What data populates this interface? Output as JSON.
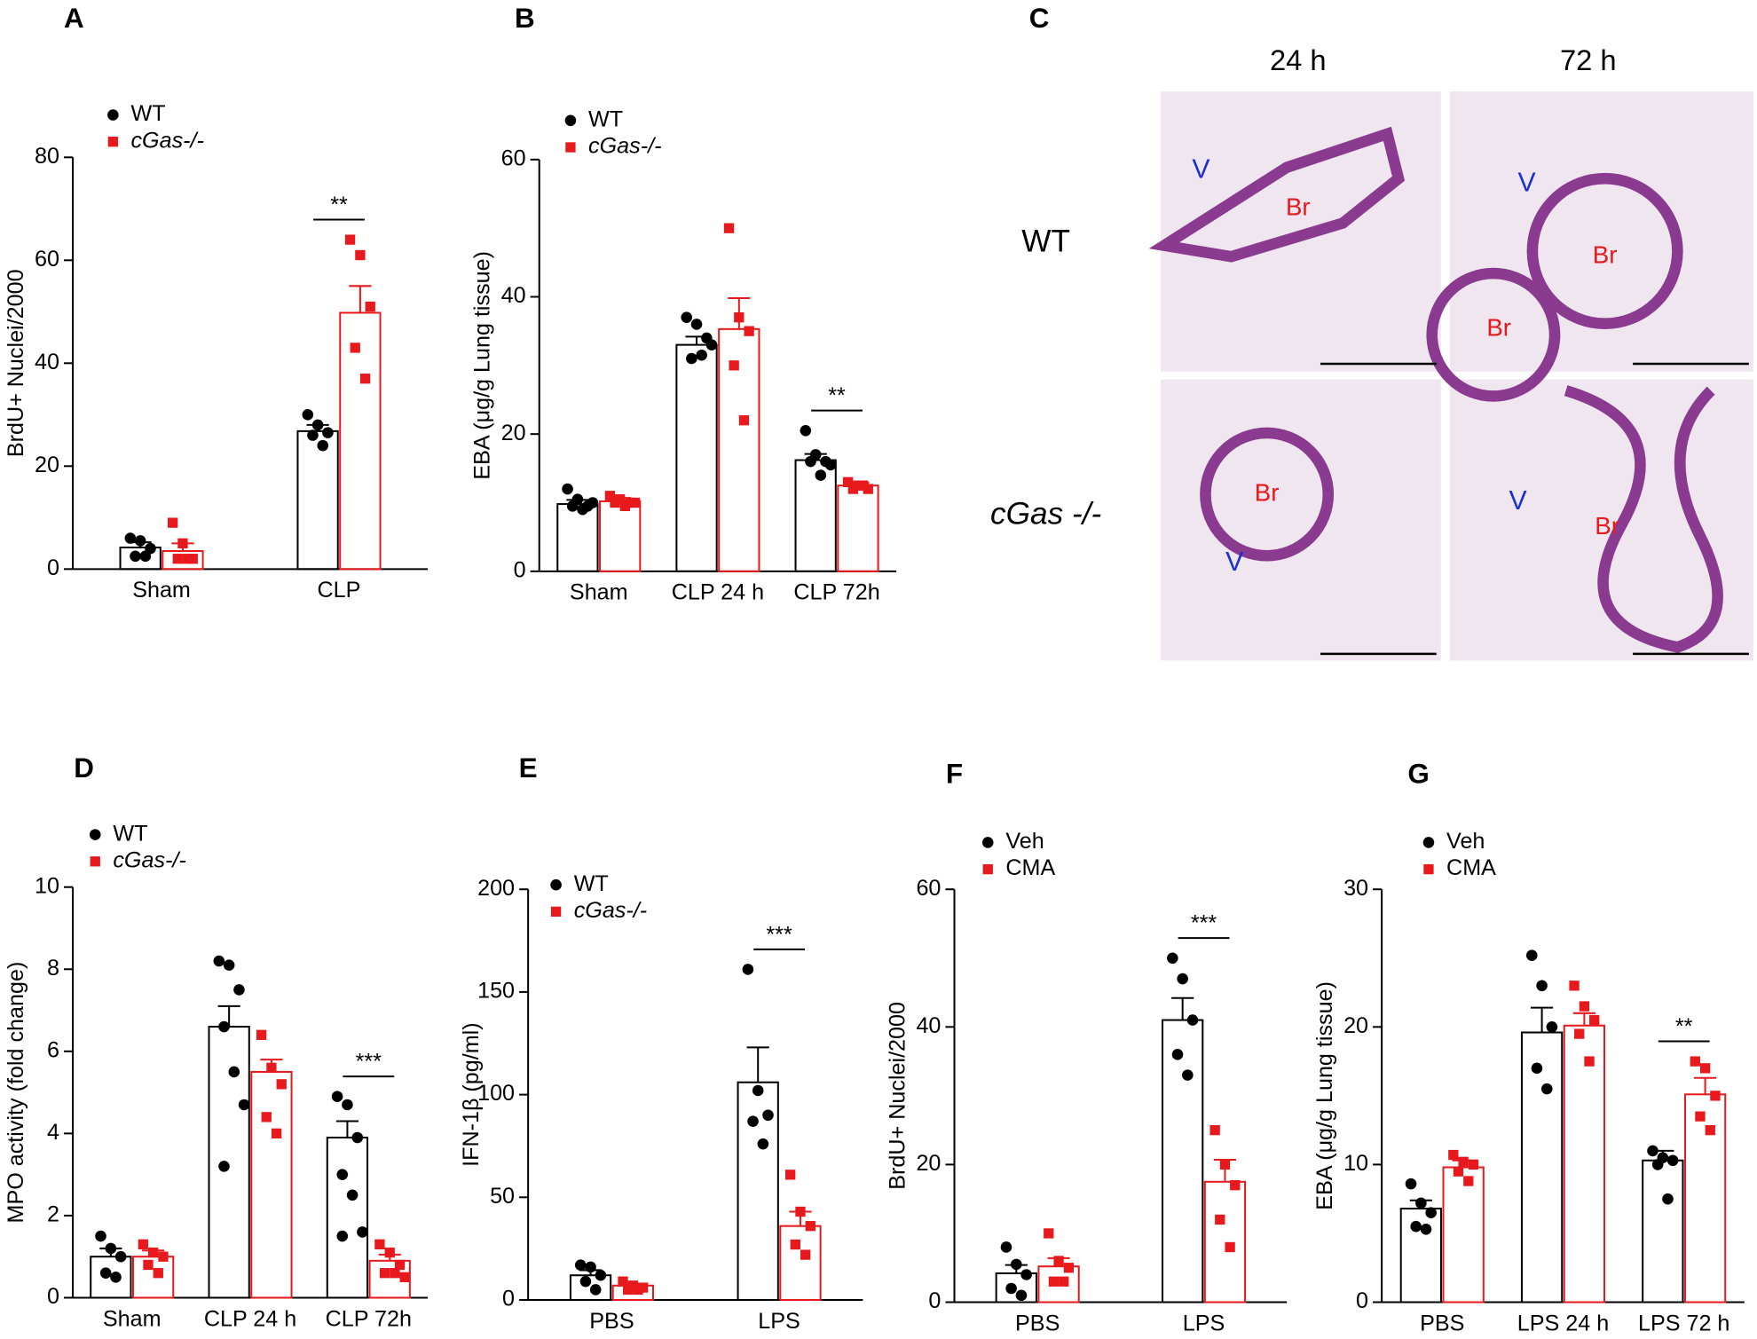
{
  "chart_data": [
    {
      "type": "bar",
      "label": "A",
      "ylabel": "BrdU+ Nuclei/2000",
      "categories": [
        "Sham",
        "CLP"
      ],
      "ylim": [
        0,
        80
      ],
      "yticks": [
        0,
        20,
        40,
        60,
        80
      ],
      "significance": [
        null,
        "**"
      ],
      "series": [
        {
          "name": "WT",
          "color": "#000000",
          "marker": "circle",
          "values": [
            4.2,
            26.8
          ],
          "errors": [
            1.0,
            1.2
          ],
          "points": [
            [
              6,
              5.5,
              4,
              2.5,
              2.5
            ],
            [
              30,
              28,
              26.5,
              26,
              24
            ]
          ]
        },
        {
          "name": "cGas-/-",
          "color": "#e8191c",
          "marker": "square",
          "values": [
            3.5,
            49.8
          ],
          "errors": [
            1.5,
            5.2
          ],
          "points": [
            [
              9,
              5,
              2,
              2,
              2
            ],
            [
              64,
              61,
              51,
              43,
              37
            ]
          ]
        }
      ]
    },
    {
      "type": "bar",
      "label": "B",
      "ylabel": "EBA (μg/g Lung tissue)",
      "categories": [
        "Sham",
        "CLP 24 h",
        "CLP 72h"
      ],
      "ylim": [
        0,
        60
      ],
      "yticks": [
        0,
        20,
        40,
        60
      ],
      "significance": [
        null,
        null,
        "**"
      ],
      "series": [
        {
          "name": "WT",
          "color": "#000000",
          "marker": "circle",
          "values": [
            9.8,
            33,
            16.2
          ],
          "errors": [
            0.6,
            1.2,
            0.9
          ],
          "points": [
            [
              12,
              10.5,
              9.5,
              9.5,
              9,
              10
            ],
            [
              37,
              36,
              34,
              31,
              31.5,
              33
            ],
            [
              20.5,
              17,
              16,
              16,
              14,
              15.5
            ]
          ]
        },
        {
          "name": "cGas-/-",
          "color": "#e8191c",
          "marker": "square",
          "values": [
            10.2,
            35.3,
            12.5
          ],
          "errors": [
            0.5,
            4.5,
            0.4
          ],
          "points": [
            [
              11,
              10.5,
              10,
              10,
              9.5,
              10
            ],
            [
              50,
              37,
              35,
              30,
              22
            ],
            [
              13,
              12.5,
              12,
              12,
              12.5
            ]
          ]
        }
      ]
    },
    {
      "type": "bar",
      "label": "D",
      "ylabel": "MPO activity (fold change)",
      "categories": [
        "Sham",
        "CLP 24 h",
        "CLP 72h"
      ],
      "ylim": [
        0,
        10
      ],
      "yticks": [
        0,
        2,
        4,
        6,
        8,
        10
      ],
      "significance": [
        null,
        null,
        "***"
      ],
      "series": [
        {
          "name": "WT",
          "color": "#000000",
          "marker": "circle",
          "values": [
            1.0,
            6.6,
            3.9
          ],
          "errors": [
            0.2,
            0.5,
            0.4
          ],
          "points": [
            [
              1.5,
              1.2,
              1.0,
              0.6,
              0.5
            ],
            [
              8.2,
              8.1,
              7.5,
              6.6,
              5.5,
              4.7,
              3.2
            ],
            [
              4.9,
              4.7,
              3.9,
              3.0,
              2.5,
              1.6,
              1.5
            ]
          ]
        },
        {
          "name": "cGas-/-",
          "color": "#e8191c",
          "marker": "square",
          "values": [
            1.0,
            5.5,
            0.9
          ],
          "errors": [
            0.15,
            0.3,
            0.15
          ],
          "points": [
            [
              1.3,
              1.1,
              1.0,
              0.8,
              0.6
            ],
            [
              6.4,
              5.6,
              5.2,
              4.4,
              4.0
            ],
            [
              1.3,
              1.1,
              0.8,
              0.6,
              0.6,
              0.5
            ]
          ]
        }
      ]
    },
    {
      "type": "bar",
      "label": "E",
      "ylabel": "IFN-1β (pg/ml)",
      "categories": [
        "PBS",
        "LPS"
      ],
      "ylim": [
        0,
        200
      ],
      "yticks": [
        0,
        50,
        100,
        150,
        200
      ],
      "significance": [
        null,
        "***"
      ],
      "series": [
        {
          "name": "WT",
          "color": "#000000",
          "marker": "circle",
          "values": [
            12,
            106
          ],
          "errors": [
            2.5,
            17
          ],
          "points": [
            [
              17,
              16,
              12,
              9,
              5
            ],
            [
              161,
              102,
              90,
              87,
              76
            ]
          ]
        },
        {
          "name": "cGas-/-",
          "color": "#e8191c",
          "marker": "square",
          "values": [
            7,
            36
          ],
          "errors": [
            1,
            7
          ],
          "points": [
            [
              9,
              7,
              6,
              5,
              5
            ],
            [
              61,
              43,
              36,
              27,
              22
            ]
          ]
        }
      ]
    },
    {
      "type": "bar",
      "label": "F",
      "ylabel": "BrdU+ Nuclei/2000",
      "categories": [
        "PBS",
        "LPS"
      ],
      "ylim": [
        0,
        60
      ],
      "yticks": [
        0,
        20,
        40,
        60
      ],
      "significance": [
        null,
        "***"
      ],
      "series": [
        {
          "name": "Veh",
          "color": "#000000",
          "marker": "circle",
          "values": [
            4.2,
            41
          ],
          "errors": [
            1.2,
            3.2
          ],
          "points": [
            [
              8,
              5.5,
              4,
              2,
              1
            ],
            [
              50,
              47,
              41,
              36,
              33
            ]
          ]
        },
        {
          "name": "CMA",
          "color": "#e8191c",
          "marker": "square",
          "values": [
            5.2,
            17.5
          ],
          "errors": [
            1.2,
            3.2
          ],
          "points": [
            [
              10,
              6,
              5,
              3,
              3
            ],
            [
              25,
              20,
              17,
              12,
              8
            ]
          ]
        }
      ]
    },
    {
      "type": "bar",
      "label": "G",
      "ylabel": "EBA (μg/g Lung tissue)",
      "categories": [
        "PBS",
        "LPS 24 h",
        "LPS 72 h"
      ],
      "ylim": [
        0,
        30
      ],
      "yticks": [
        0,
        10,
        20,
        30
      ],
      "significance": [
        null,
        null,
        "**"
      ],
      "series": [
        {
          "name": "Veh",
          "color": "#000000",
          "marker": "circle",
          "values": [
            6.8,
            19.6,
            10.3
          ],
          "errors": [
            0.6,
            1.8,
            0.7
          ],
          "points": [
            [
              8.6,
              7.2,
              6.5,
              5.5,
              5.3
            ],
            [
              25.2,
              23,
              20,
              17,
              15.5
            ],
            [
              11,
              10.5,
              10.3,
              10,
              7.5
            ]
          ]
        },
        {
          "name": "CMA",
          "color": "#e8191c",
          "marker": "square",
          "values": [
            9.8,
            20.1,
            15.1
          ],
          "errors": [
            0.5,
            0.9,
            1.2
          ],
          "points": [
            [
              10.7,
              10.2,
              10,
              9.5,
              8.8
            ],
            [
              23,
              21.5,
              20.5,
              19.5,
              17.5
            ],
            [
              17.5,
              17,
              15,
              13.5,
              12.5
            ]
          ]
        }
      ]
    }
  ],
  "image_panel": {
    "label": "C",
    "columns": [
      "24 h",
      "72 h"
    ],
    "rows": [
      "WT",
      "cGas -/-"
    ],
    "tiles": [
      [
        "V",
        "Br"
      ],
      [
        "V",
        "Br",
        "Br"
      ],
      [
        "Br",
        "V"
      ],
      [
        "V",
        "Br"
      ]
    ]
  }
}
